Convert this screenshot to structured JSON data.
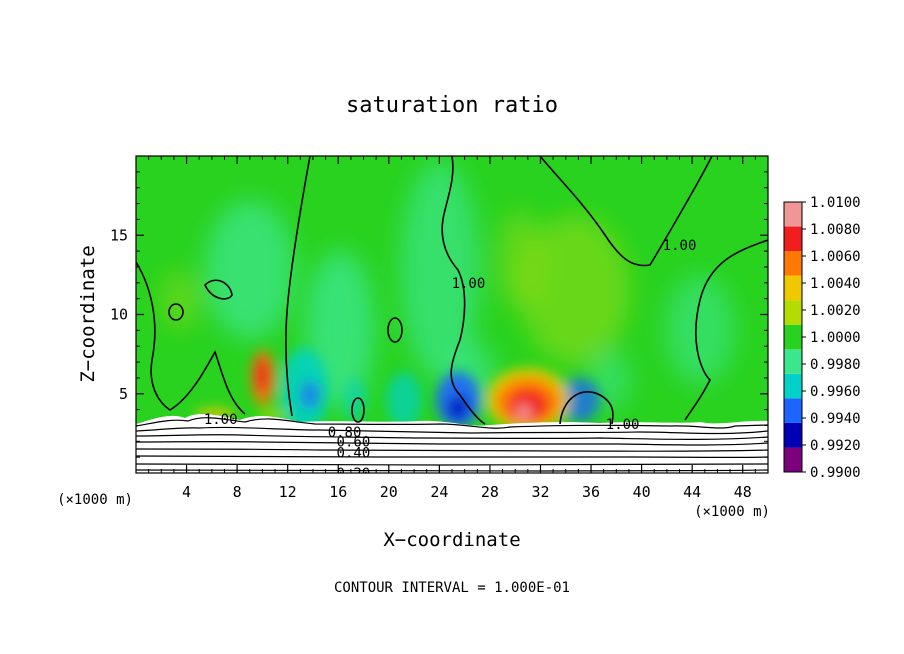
{
  "chart_data": {
    "type": "heatmap",
    "title": "saturation ratio",
    "xlabel": "X−coordinate",
    "ylabel": "Z−coordinate",
    "x_unit": "(×1000 m)",
    "z_unit": "(×1000 m)",
    "xlim": [
      0,
      50
    ],
    "ylim": [
      0,
      20
    ],
    "x_ticks": [
      4,
      8,
      12,
      16,
      20,
      24,
      28,
      32,
      36,
      40,
      44,
      48
    ],
    "y_ticks": [
      5,
      10,
      15
    ],
    "x_tick_labels": [
      "4",
      "8",
      "12",
      "16",
      "20",
      "24",
      "28",
      "32",
      "36",
      "40",
      "44",
      "48"
    ],
    "y_tick_labels": [
      "5",
      "10",
      "15"
    ],
    "colorbar": {
      "levels": [
        0.99,
        0.992,
        0.994,
        0.996,
        0.998,
        1.0,
        1.002,
        1.004,
        1.006,
        1.008,
        1.01
      ],
      "labels": [
        "0.9900",
        "0.9920",
        "0.9940",
        "0.9960",
        "0.9980",
        "1.0000",
        "1.0020",
        "1.0040",
        "1.0060",
        "1.0080",
        "1.0100"
      ],
      "colors": [
        "#7d007d",
        "#0000b4",
        "#1e64ff",
        "#00d2c8",
        "#3ce68c",
        "#28d21e",
        "#b4dc00",
        "#f0c800",
        "#ff7800",
        "#f01e1e",
        "#f09696"
      ]
    },
    "background_value": 1.0,
    "features": [
      {
        "kind": "maximum",
        "x": 10,
        "z": 6.0,
        "value": 1.007
      },
      {
        "kind": "maximum",
        "x": 30.5,
        "z": 5.0,
        "value": 1.008
      },
      {
        "kind": "maximum",
        "x": 6,
        "z": 3.7,
        "value": 1.004
      },
      {
        "kind": "minimum",
        "x": 25.5,
        "z": 4.5,
        "value": 0.993
      },
      {
        "kind": "minimum",
        "x": 14,
        "z": 4.8,
        "value": 0.995
      },
      {
        "kind": "minimum",
        "x": 34.5,
        "z": 4.0,
        "value": 0.995
      },
      {
        "kind": "minimum",
        "x": 18,
        "z": 4.5,
        "value": 0.997
      },
      {
        "kind": "minimum",
        "x": 22,
        "z": 4.2,
        "value": 0.997
      }
    ],
    "contour_labels": [
      {
        "text": "1.00",
        "x": 6.7,
        "z": 3.4
      },
      {
        "text": "1.00",
        "x": 26.3,
        "z": 12.0
      },
      {
        "text": "1.00",
        "x": 43.0,
        "z": 14.4
      },
      {
        "text": "1.00",
        "x": 38.5,
        "z": 3.1
      },
      {
        "text": "0.80",
        "x": 16.5,
        "z": 2.6
      },
      {
        "text": "0.60",
        "x": 17.2,
        "z": 2.0
      },
      {
        "text": "0.40",
        "x": 17.2,
        "z": 1.3
      },
      {
        "text": "0.20",
        "x": 17.2,
        "z": 0.0
      }
    ],
    "contour_interval_text": "CONTOUR INTERVAL =  1.000E-01"
  }
}
